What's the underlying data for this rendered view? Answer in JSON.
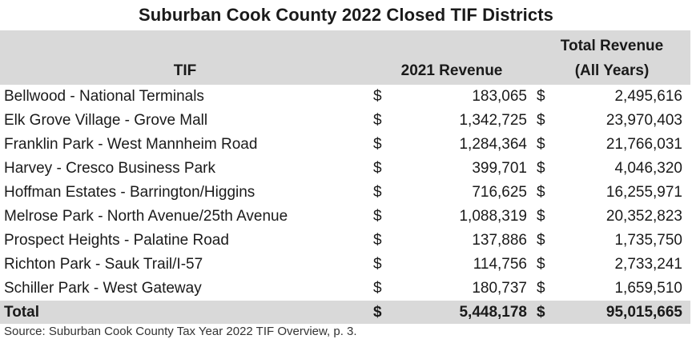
{
  "title": "Suburban Cook County 2022 Closed TIF Districts",
  "headers": {
    "tif": "TIF",
    "revenue_2021": "2021 Revenue",
    "total_revenue_line1": "Total Revenue",
    "total_revenue_line2": "(All Years)"
  },
  "rows": [
    {
      "tif": "Bellwood - National Terminals",
      "cur1": "$",
      "rev2021": "183,065",
      "cur2": "$",
      "total": "2,495,616"
    },
    {
      "tif": "Elk Grove Village - Grove Mall",
      "cur1": "$",
      "rev2021": "1,342,725",
      "cur2": "$",
      "total": "23,970,403"
    },
    {
      "tif": "Franklin Park - West Mannheim Road",
      "cur1": "$",
      "rev2021": "1,284,364",
      "cur2": "$",
      "total": "21,766,031"
    },
    {
      "tif": "Harvey - Cresco Business Park",
      "cur1": "$",
      "rev2021": "399,701",
      "cur2": "$",
      "total": "4,046,320"
    },
    {
      "tif": "Hoffman Estates - Barrington/Higgins",
      "cur1": "$",
      "rev2021": "716,625",
      "cur2": "$",
      "total": "16,255,971"
    },
    {
      "tif": "Melrose Park - North Avenue/25th Avenue",
      "cur1": "$",
      "rev2021": "1,088,319",
      "cur2": "$",
      "total": "20,352,823"
    },
    {
      "tif": "Prospect Heights - Palatine Road",
      "cur1": "$",
      "rev2021": "137,886",
      "cur2": "$",
      "total": "1,735,750"
    },
    {
      "tif": "Richton Park - Sauk Trail/I-57",
      "cur1": "$",
      "rev2021": "114,756",
      "cur2": "$",
      "total": "2,733,241"
    },
    {
      "tif": "Schiller Park - West Gateway",
      "cur1": "$",
      "rev2021": "180,737",
      "cur2": "$",
      "total": "1,659,510"
    }
  ],
  "total": {
    "label": "Total",
    "cur1": "$",
    "rev2021": "5,448,178",
    "cur2": "$",
    "total": "95,015,665"
  },
  "source": "Source: Suburban Cook County Tax Year 2022 TIF Overview, p. 3.",
  "colors": {
    "header_bg": "#d9d9d9",
    "total_bg": "#d9d9d9"
  }
}
